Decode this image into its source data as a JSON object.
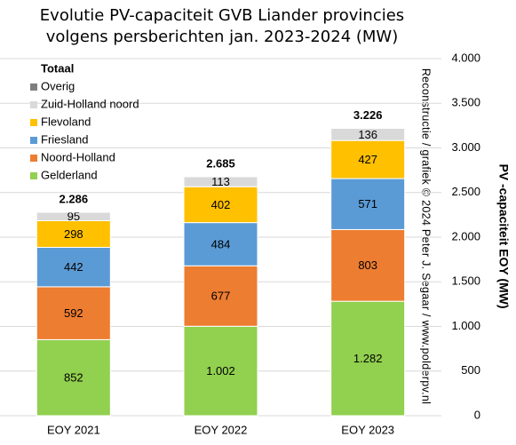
{
  "chart_data": {
    "type": "stacked-bar",
    "title": [
      "Evolutie PV-capaciteit GVB Liander provincies",
      "volgens persberichten jan. 2023-2024 (MW)"
    ],
    "y_label": "PV -capaciteit EOY (MW)",
    "annotation": "Reconstructie / grafiek © 2024 Peter J. Segaar / www.polderpv.nl",
    "categories": [
      "EOY 2021",
      "EOY 2022",
      "EOY 2023"
    ],
    "series": [
      {
        "name": "Gelderland",
        "color": "#92d050",
        "values": [
          852,
          1002,
          1282
        ],
        "value_labels": [
          "852",
          "1.002",
          "1.282"
        ]
      },
      {
        "name": "Noord-Holland",
        "color": "#ed7d31",
        "values": [
          592,
          677,
          803
        ]
      },
      {
        "name": "Friesland",
        "color": "#5b9bd5",
        "values": [
          442,
          484,
          571
        ]
      },
      {
        "name": "Flevoland",
        "color": "#ffc000",
        "values": [
          298,
          402,
          427
        ]
      },
      {
        "name": "Zuid-Holland noord",
        "color": "#d9d9d9",
        "values": [
          95,
          113,
          136
        ]
      },
      {
        "name": "Overig",
        "color": "#7f7f7f",
        "values": [
          7,
          7,
          7
        ]
      }
    ],
    "totals": {
      "name": "Totaal",
      "values": [
        2286,
        2685,
        3226
      ],
      "value_labels": [
        "2.286",
        "2.685",
        "3.226"
      ]
    },
    "ylim": [
      0,
      4000
    ],
    "yticks": [
      0,
      500,
      {
        "value": 1000,
        "label": "1.000"
      },
      {
        "value": 1500,
        "label": "1.500"
      },
      {
        "value": 2000,
        "label": "2.000"
      },
      {
        "value": 2500,
        "label": "2.500"
      },
      {
        "value": 3000,
        "label": "3.000"
      },
      {
        "value": 3500,
        "label": "3.500"
      },
      {
        "value": 4000,
        "label": "4.000"
      }
    ],
    "grid": true,
    "legend": "upper left"
  }
}
